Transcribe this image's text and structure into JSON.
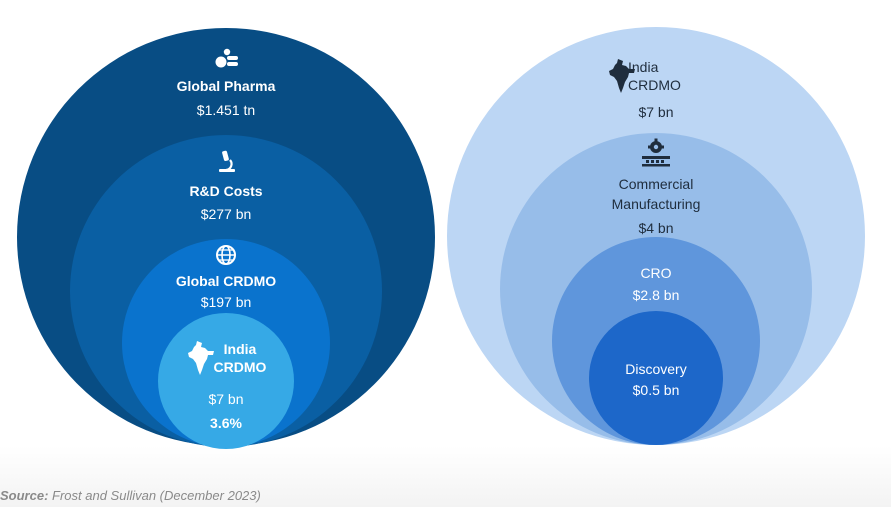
{
  "left": {
    "global_pharma": {
      "title": "Global Pharma",
      "value": "$1.451 tn",
      "icon": "pills-icon"
    },
    "rd_costs": {
      "title": "R&D Costs",
      "value": "$277 bn",
      "icon": "microscope-icon"
    },
    "global_crdmo": {
      "title": "Global CRDMO",
      "value": "$197 bn",
      "icon": "globe-icon"
    },
    "india_crdmo": {
      "title_line1": "India",
      "title_line2": "CRDMO",
      "value": "$7 bn",
      "share": "3.6%",
      "icon": "india-map-icon"
    }
  },
  "right": {
    "india_crdmo": {
      "title_line1": "India",
      "title_line2": "CRDMO",
      "value": "$7 bn",
      "icon": "india-map-icon"
    },
    "commercial_manufacturing": {
      "title_line1": "Commercial",
      "title_line2": "Manufacturing",
      "value": "$4 bn",
      "icon": "factory-gear-icon"
    },
    "cro": {
      "title": "CRO",
      "value": "$2.8 bn"
    },
    "discovery": {
      "title": "Discovery",
      "value": "$0.5 bn"
    }
  },
  "source": {
    "label": "Source:",
    "text": " Frost and Sullivan (December 2023)"
  },
  "colors": {
    "left_outer": "#084d84",
    "left_rd": "#0a5fa3",
    "left_crdmo": "#0a73cd",
    "left_india": "#36a9e6",
    "right_outer": "#bcd6f4",
    "right_cm": "#97bde9",
    "right_cro": "#5f96dc",
    "right_discovery": "#1d67c9"
  }
}
